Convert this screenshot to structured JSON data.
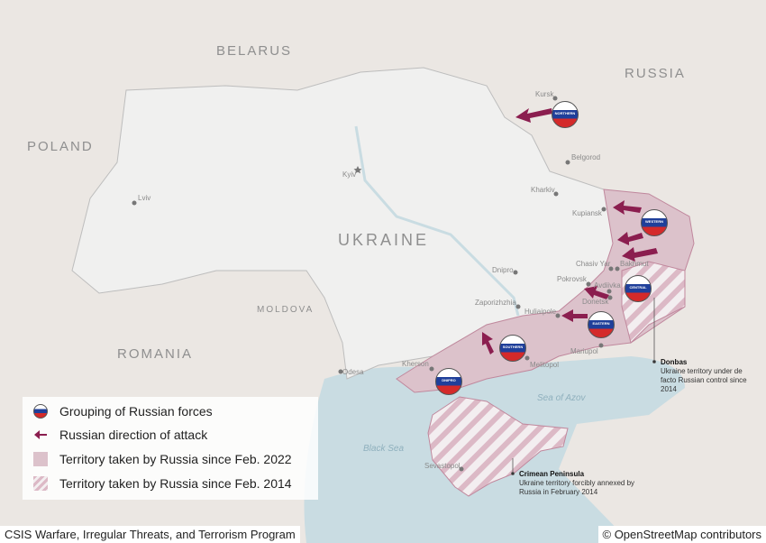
{
  "map": {
    "countries": [
      "BELARUS",
      "RUSSIA",
      "POLAND",
      "MOLDOVA",
      "ROMANIA"
    ],
    "main_country": "UKRAINE",
    "cities": [
      "Kursk",
      "Belgorod",
      "Kharkiv",
      "Kupiansk",
      "Kyiv",
      "Lviv",
      "Chasiv Yar",
      "Bakhmut",
      "Pokrovsk",
      "Avdiivka",
      "Donetsk",
      "Dnipro",
      "Zaporizhzhia",
      "Huliaipole",
      "Mariupol",
      "Melitopol",
      "Kherson",
      "Odesa",
      "Sevastopol"
    ],
    "seas": [
      "Sea of Azov",
      "Black Sea"
    ],
    "force_groups": [
      "NORTHERN",
      "WESTERN",
      "CENTRAL",
      "EASTERN",
      "SOUTHERN",
      "DNIPRO"
    ],
    "annotations": [
      {
        "title": "Donbas",
        "text": "Ukraine territory under de facto Russian control since 2014"
      },
      {
        "title": "Crimean Peninsula",
        "text": "Ukraine territory forcibly annexed by Russia in February 2014"
      }
    ],
    "colors": {
      "land": "#ebe7e3",
      "ukraine": "#f0f0ef",
      "sea": "#c9dce2",
      "occupied": "#dcc2cb",
      "arrow": "#8b1e4f"
    }
  },
  "legend": [
    {
      "icon": "russian-flag-badge-icon",
      "label": "Grouping of Russian forces"
    },
    {
      "icon": "arrow-left-icon",
      "label": "Russian direction of attack"
    },
    {
      "icon": "solid-pink-swatch-icon",
      "label": "Territory taken by Russia since Feb. 2022"
    },
    {
      "icon": "striped-pink-swatch-icon",
      "label": "Territory taken by Russia since Feb. 2014"
    }
  ],
  "footer": {
    "source": "CSIS Warfare, Irregular Threats, and Terrorism Program",
    "attribution": "© OpenStreetMap contributors"
  }
}
